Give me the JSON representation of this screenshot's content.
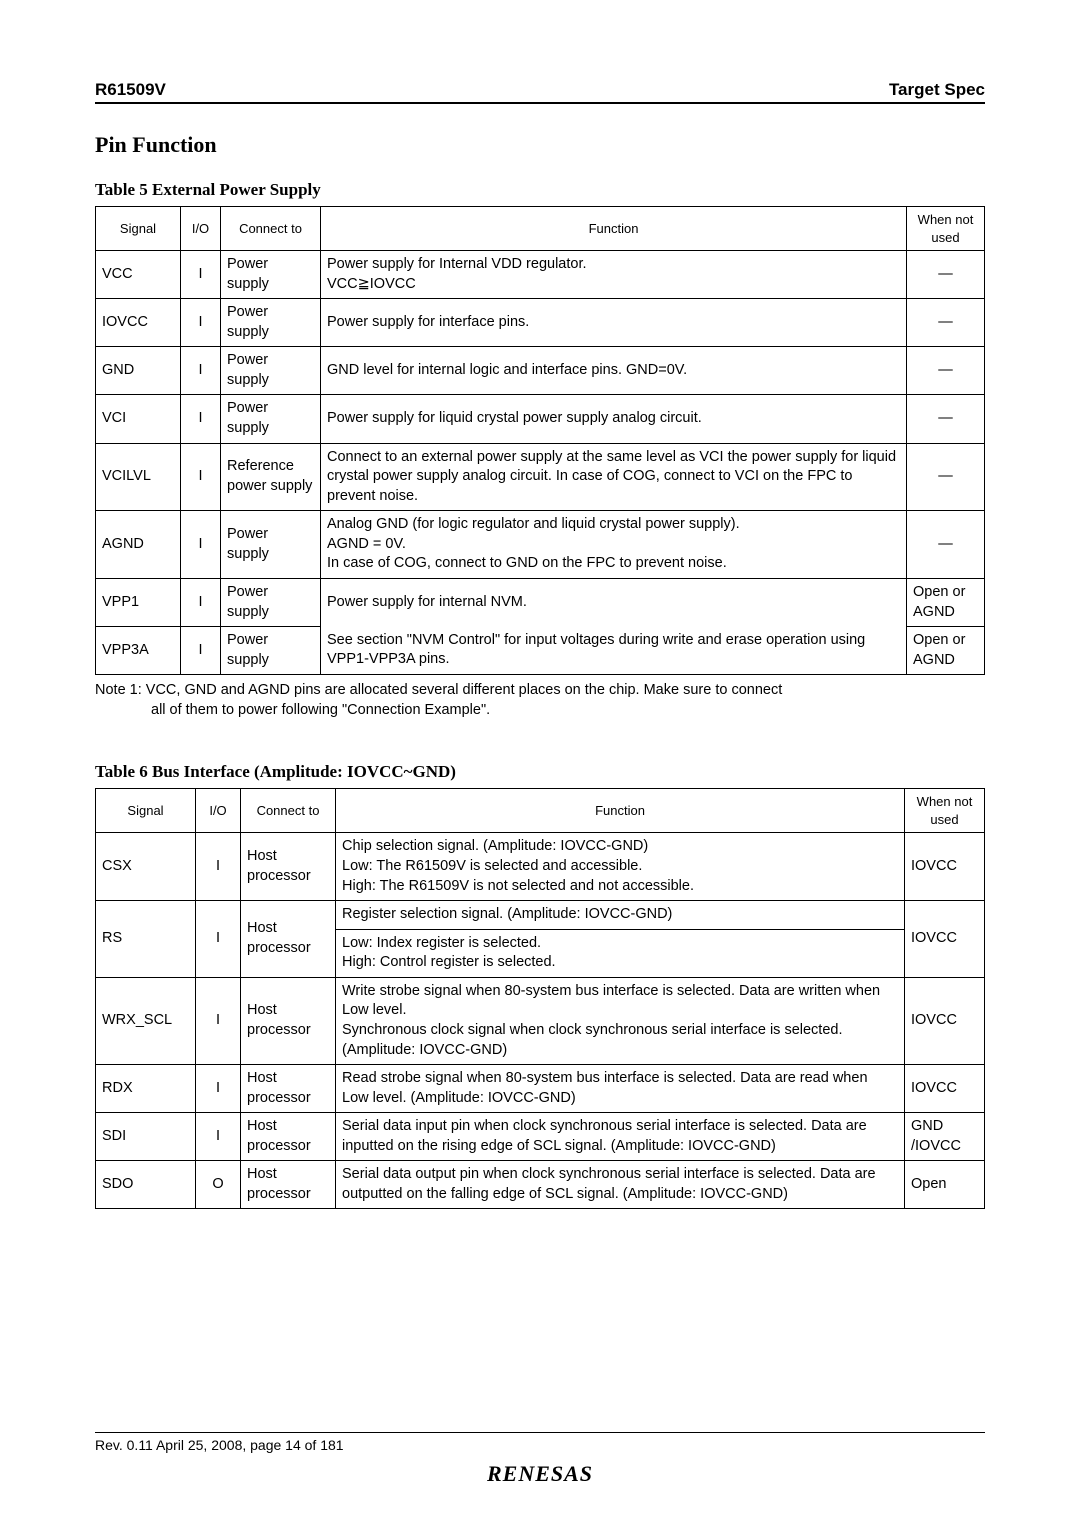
{
  "header": {
    "left": "R61509V",
    "right": "Target Spec"
  },
  "section_title": "Pin Function",
  "table5": {
    "caption": "Table 5 External Power Supply",
    "headers": [
      "Signal",
      "I/O",
      "Connect to",
      "Function",
      "When not used"
    ],
    "rows": [
      {
        "signal": "VCC",
        "io": "I",
        "connect": "Power supply",
        "func": "Power supply for Internal VDD regulator.\nVCC≧IOVCC",
        "when": "―"
      },
      {
        "signal": "IOVCC",
        "io": "I",
        "connect": "Power supply",
        "func": "Power supply for interface pins.",
        "when": "―"
      },
      {
        "signal": "GND",
        "io": "I",
        "connect": "Power supply",
        "func": "GND level for internal logic and interface pins. GND=0V.",
        "when": "―"
      },
      {
        "signal": "VCI",
        "io": "I",
        "connect": "Power supply",
        "func": "Power supply for liquid crystal power supply analog circuit.",
        "when": "―"
      },
      {
        "signal": "VCILVL",
        "io": "I",
        "connect": "Reference power supply",
        "func": "Connect to an external power supply at the same level as VCI the power supply for liquid crystal power supply analog circuit. In case of COG, connect to VCI on the FPC to prevent noise.",
        "when": "―"
      },
      {
        "signal": "AGND",
        "io": "I",
        "connect": "Power supply",
        "func": "Analog GND (for logic regulator and liquid crystal power supply).\nAGND = 0V.\nIn case of COG, connect to GND on the FPC to prevent noise.",
        "when": "―"
      },
      {
        "signal": "VPP1",
        "io": "I",
        "connect": "Power supply",
        "func": "Power supply for internal NVM.",
        "when": "Open or AGND"
      },
      {
        "signal": "VPP3A",
        "io": "I",
        "connect": "Power supply",
        "func": "See section \"NVM Control\" for input voltages during write and erase operation using VPP1-VPP3A pins.",
        "when": "Open or AGND"
      }
    ],
    "note_l1": "Note 1: VCC, GND and AGND pins are allocated several different places on the chip. Make sure to connect",
    "note_l2": "all of them to power following \"Connection Example\"."
  },
  "table6": {
    "caption": "Table 6 Bus Interface (Amplitude: IOVCC~GND)",
    "headers": [
      "Signal",
      "I/O",
      "Connect to",
      "Function",
      "When not used"
    ],
    "rows": [
      {
        "signal": "CSX",
        "io": "I",
        "connect": "Host processor",
        "func": "Chip selection signal. (Amplitude: IOVCC-GND)\nLow: The R61509V is selected and accessible.\nHigh: The R61509V is not selected and not accessible.",
        "when": "IOVCC"
      },
      {
        "signal": "RS",
        "io": "I",
        "connect": "Host processor",
        "func_top": "Register selection signal. (Amplitude: IOVCC-GND)",
        "func_bot": "Low: Index register is selected.\nHigh: Control register is selected.",
        "when": "IOVCC"
      },
      {
        "signal": "WRX_SCL",
        "io": "I",
        "connect": "Host processor",
        "func": "Write strobe signal when 80-system bus interface is selected. Data are written when Low level.\nSynchronous clock signal when clock synchronous serial interface is selected.\n(Amplitude: IOVCC-GND)",
        "when": "IOVCC"
      },
      {
        "signal": "RDX",
        "io": "I",
        "connect": "Host processor",
        "func": "Read strobe signal when 80-system bus interface is selected. Data are read when Low level.  (Amplitude: IOVCC-GND)",
        "when": "IOVCC"
      },
      {
        "signal": "SDI",
        "io": "I",
        "connect": "Host processor",
        "func": "Serial data input pin when clock synchronous serial interface is selected. Data are inputted on the rising edge of SCL signal. (Amplitude: IOVCC-GND)",
        "when": "GND /IOVCC"
      },
      {
        "signal": "SDO",
        "io": "O",
        "connect": "Host processor",
        "func": "Serial data output pin when clock synchronous serial interface is selected. Data are outputted on the falling edge of SCL signal. (Amplitude: IOVCC-GND)",
        "when": "Open"
      }
    ]
  },
  "footer": {
    "rev": "Rev. 0.11 April 25, 2008, page 14 of 181",
    "logo": "RENESAS"
  }
}
